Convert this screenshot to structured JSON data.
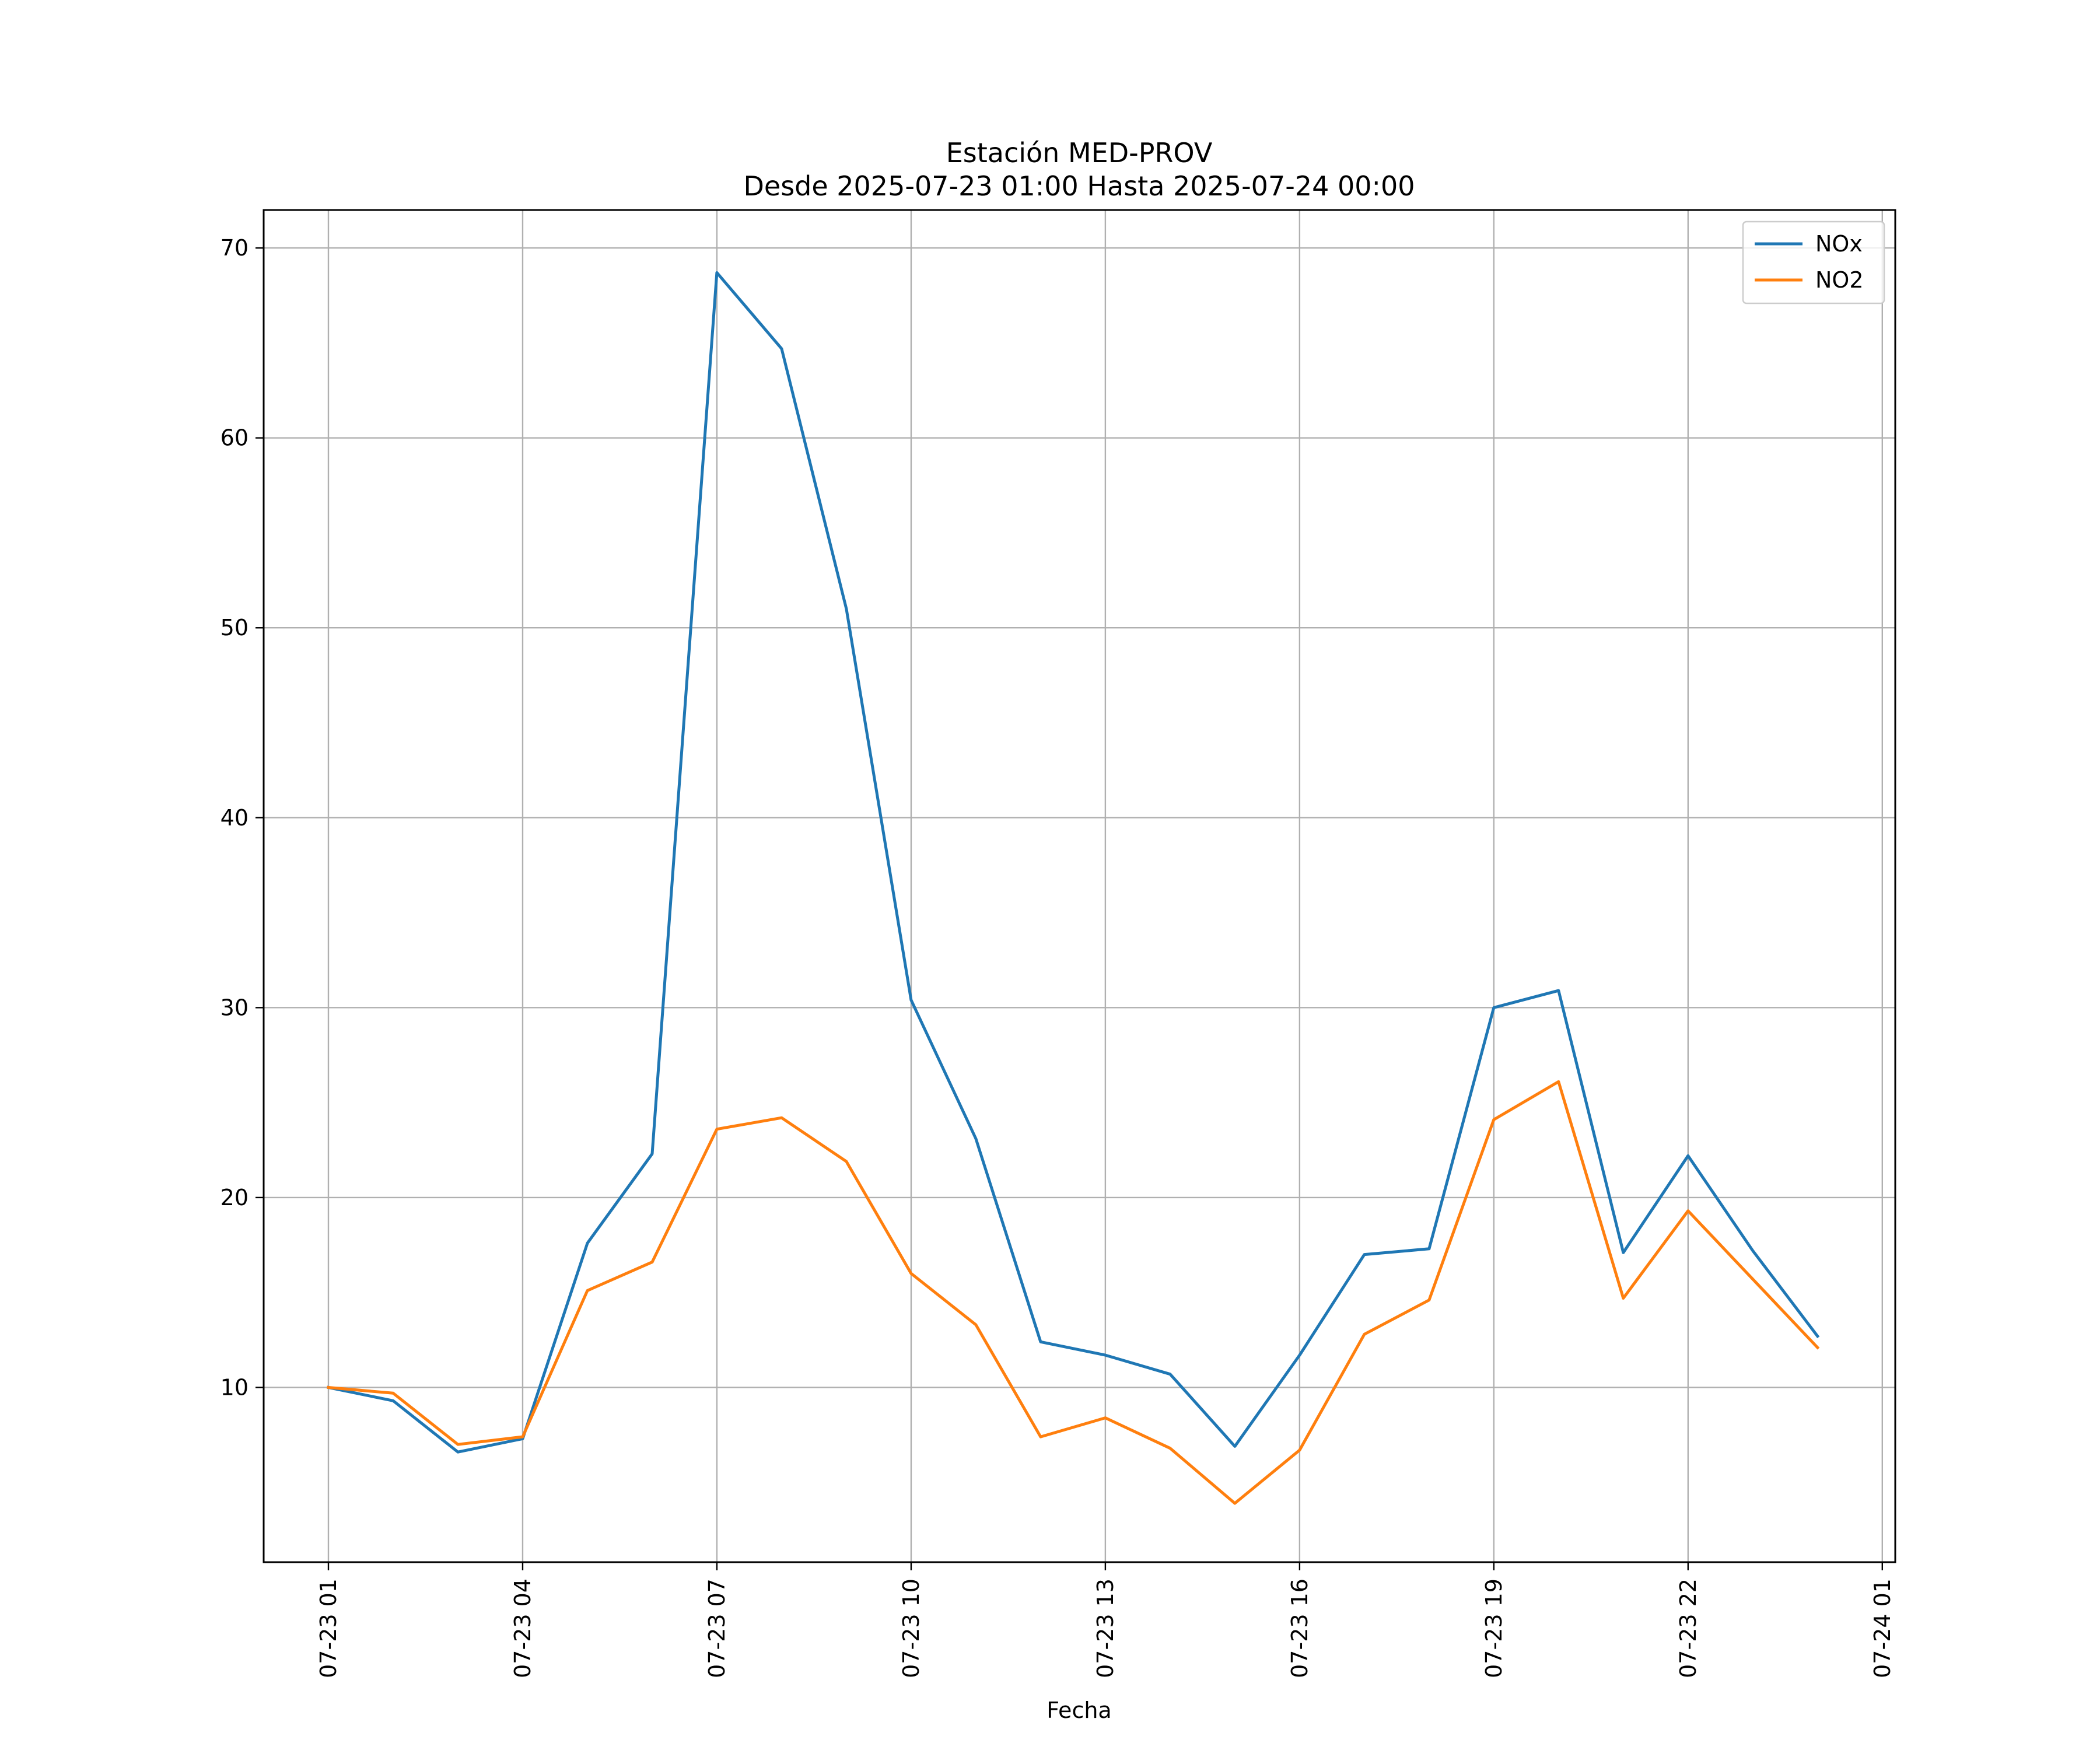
{
  "chart_data": {
    "type": "line",
    "title": "Estación MED-PROV",
    "subtitle": "Desde 2025-07-23 01:00 Hasta 2025-07-24 00:00",
    "xlabel": "Fecha",
    "ylabel": "",
    "x": [
      "07-23 01:00",
      "07-23 02:00",
      "07-23 03:00",
      "07-23 04:00",
      "07-23 05:00",
      "07-23 06:00",
      "07-23 07:00",
      "07-23 08:00",
      "07-23 09:00",
      "07-23 10:00",
      "07-23 11:00",
      "07-23 12:00",
      "07-23 13:00",
      "07-23 14:00",
      "07-23 15:00",
      "07-23 16:00",
      "07-23 17:00",
      "07-23 18:00",
      "07-23 19:00",
      "07-23 20:00",
      "07-23 21:00",
      "07-23 22:00",
      "07-23 23:00",
      "07-24 00:00"
    ],
    "xlim": [
      "07-23 00:00",
      "07-24 01:12"
    ],
    "ylim": [
      0.8,
      72
    ],
    "x_ticks": [
      "07-23 01",
      "07-23 04",
      "07-23 07",
      "07-23 10",
      "07-23 13",
      "07-23 16",
      "07-23 19",
      "07-23 22",
      "07-24 01"
    ],
    "y_ticks": [
      "10",
      "20",
      "30",
      "40",
      "50",
      "60",
      "70"
    ],
    "grid": true,
    "legend_position": "top-right",
    "series": [
      {
        "name": "NOx",
        "color": "#1f77b4",
        "values": [
          10.0,
          9.3,
          6.6,
          7.3,
          17.6,
          22.3,
          68.7,
          64.7,
          51.0,
          30.4,
          23.1,
          12.4,
          11.7,
          10.7,
          6.9,
          11.7,
          17.0,
          17.3,
          30.0,
          30.9,
          17.1,
          22.2,
          17.2,
          12.7
        ]
      },
      {
        "name": "NO2",
        "color": "#ff7f0e",
        "values": [
          10.0,
          9.7,
          7.0,
          7.4,
          15.1,
          16.6,
          23.6,
          24.2,
          21.9,
          16.0,
          13.3,
          7.4,
          8.4,
          6.8,
          3.9,
          6.7,
          12.8,
          14.6,
          24.1,
          26.1,
          14.7,
          19.3,
          15.7,
          12.1
        ]
      }
    ]
  }
}
